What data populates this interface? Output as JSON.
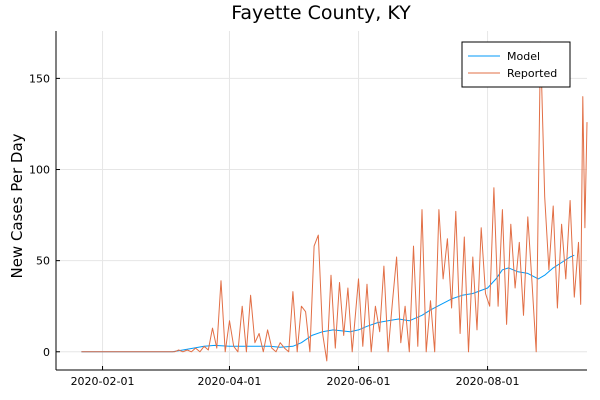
{
  "chart_data": {
    "type": "line",
    "title": "Fayette County, KY",
    "xlabel": "",
    "ylabel": "New Cases Per Day",
    "x_axis_type": "date",
    "xlim": [
      "2020-01-10",
      "2020-09-17"
    ],
    "ylim": [
      -10,
      176
    ],
    "xticks": [
      "2020-02-01",
      "2020-04-01",
      "2020-06-01",
      "2020-08-01"
    ],
    "yticks": [
      0,
      50,
      100,
      150
    ],
    "grid": true,
    "legend_position": "top-right",
    "series": [
      {
        "name": "Model",
        "color": "#009af9",
        "points": [
          [
            "2020-01-22",
            0
          ],
          [
            "2020-03-05",
            0
          ],
          [
            "2020-03-10",
            1
          ],
          [
            "2020-03-15",
            2
          ],
          [
            "2020-03-20",
            3
          ],
          [
            "2020-03-25",
            3.5
          ],
          [
            "2020-04-01",
            3
          ],
          [
            "2020-04-10",
            3
          ],
          [
            "2020-04-20",
            3
          ],
          [
            "2020-04-25",
            2.5
          ],
          [
            "2020-05-01",
            3
          ],
          [
            "2020-05-05",
            5
          ],
          [
            "2020-05-10",
            9
          ],
          [
            "2020-05-15",
            11
          ],
          [
            "2020-05-20",
            12
          ],
          [
            "2020-05-28",
            11
          ],
          [
            "2020-06-01",
            12
          ],
          [
            "2020-06-05",
            14
          ],
          [
            "2020-06-10",
            16
          ],
          [
            "2020-06-15",
            17
          ],
          [
            "2020-06-20",
            18
          ],
          [
            "2020-06-25",
            17
          ],
          [
            "2020-07-01",
            20
          ],
          [
            "2020-07-05",
            23
          ],
          [
            "2020-07-10",
            26
          ],
          [
            "2020-07-15",
            29
          ],
          [
            "2020-07-20",
            31
          ],
          [
            "2020-07-25",
            32
          ],
          [
            "2020-08-01",
            35
          ],
          [
            "2020-08-05",
            40
          ],
          [
            "2020-08-08",
            45
          ],
          [
            "2020-08-11",
            46
          ],
          [
            "2020-08-15",
            44
          ],
          [
            "2020-08-20",
            43
          ],
          [
            "2020-08-25",
            40
          ],
          [
            "2020-08-28",
            42
          ],
          [
            "2020-09-01",
            46
          ],
          [
            "2020-09-05",
            49
          ],
          [
            "2020-09-09",
            52
          ],
          [
            "2020-09-11",
            53
          ]
        ]
      },
      {
        "name": "Reported",
        "color": "#e26f46",
        "points": [
          [
            "2020-01-22",
            0
          ],
          [
            "2020-03-06",
            0
          ],
          [
            "2020-03-08",
            1
          ],
          [
            "2020-03-10",
            0
          ],
          [
            "2020-03-12",
            1
          ],
          [
            "2020-03-14",
            0
          ],
          [
            "2020-03-16",
            2
          ],
          [
            "2020-03-18",
            0
          ],
          [
            "2020-03-20",
            3
          ],
          [
            "2020-03-22",
            1
          ],
          [
            "2020-03-24",
            13
          ],
          [
            "2020-03-26",
            2
          ],
          [
            "2020-03-28",
            39
          ],
          [
            "2020-03-30",
            0
          ],
          [
            "2020-04-01",
            17
          ],
          [
            "2020-04-03",
            3
          ],
          [
            "2020-04-05",
            0
          ],
          [
            "2020-04-07",
            25
          ],
          [
            "2020-04-09",
            0
          ],
          [
            "2020-04-11",
            31
          ],
          [
            "2020-04-13",
            5
          ],
          [
            "2020-04-15",
            10
          ],
          [
            "2020-04-17",
            0
          ],
          [
            "2020-04-19",
            12
          ],
          [
            "2020-04-21",
            2
          ],
          [
            "2020-04-23",
            0
          ],
          [
            "2020-04-25",
            5
          ],
          [
            "2020-04-27",
            2
          ],
          [
            "2020-04-29",
            0
          ],
          [
            "2020-05-01",
            33
          ],
          [
            "2020-05-03",
            0
          ],
          [
            "2020-05-05",
            25
          ],
          [
            "2020-05-07",
            22
          ],
          [
            "2020-05-09",
            0
          ],
          [
            "2020-05-11",
            58
          ],
          [
            "2020-05-13",
            64
          ],
          [
            "2020-05-15",
            10
          ],
          [
            "2020-05-17",
            -5
          ],
          [
            "2020-05-19",
            42
          ],
          [
            "2020-05-21",
            2
          ],
          [
            "2020-05-23",
            38
          ],
          [
            "2020-05-25",
            9
          ],
          [
            "2020-05-27",
            35
          ],
          [
            "2020-05-29",
            0
          ],
          [
            "2020-06-01",
            40
          ],
          [
            "2020-06-03",
            3
          ],
          [
            "2020-06-05",
            37
          ],
          [
            "2020-06-07",
            0
          ],
          [
            "2020-06-09",
            25
          ],
          [
            "2020-06-11",
            11
          ],
          [
            "2020-06-13",
            47
          ],
          [
            "2020-06-15",
            0
          ],
          [
            "2020-06-17",
            27
          ],
          [
            "2020-06-19",
            52
          ],
          [
            "2020-06-21",
            5
          ],
          [
            "2020-06-23",
            25
          ],
          [
            "2020-06-25",
            0
          ],
          [
            "2020-06-27",
            58
          ],
          [
            "2020-06-29",
            3
          ],
          [
            "2020-07-01",
            78
          ],
          [
            "2020-07-03",
            0
          ],
          [
            "2020-07-05",
            28
          ],
          [
            "2020-07-07",
            0
          ],
          [
            "2020-07-09",
            78
          ],
          [
            "2020-07-11",
            40
          ],
          [
            "2020-07-13",
            62
          ],
          [
            "2020-07-15",
            24
          ],
          [
            "2020-07-17",
            77
          ],
          [
            "2020-07-19",
            10
          ],
          [
            "2020-07-21",
            63
          ],
          [
            "2020-07-23",
            0
          ],
          [
            "2020-07-25",
            52
          ],
          [
            "2020-07-27",
            12
          ],
          [
            "2020-07-29",
            68
          ],
          [
            "2020-07-31",
            32
          ],
          [
            "2020-08-02",
            25
          ],
          [
            "2020-08-04",
            90
          ],
          [
            "2020-08-06",
            25
          ],
          [
            "2020-08-08",
            78
          ],
          [
            "2020-08-10",
            15
          ],
          [
            "2020-08-12",
            70
          ],
          [
            "2020-08-14",
            35
          ],
          [
            "2020-08-16",
            60
          ],
          [
            "2020-08-18",
            20
          ],
          [
            "2020-08-20",
            74
          ],
          [
            "2020-08-22",
            38
          ],
          [
            "2020-08-24",
            0
          ],
          [
            "2020-08-26",
            170
          ],
          [
            "2020-08-28",
            85
          ],
          [
            "2020-08-30",
            45
          ],
          [
            "2020-09-01",
            80
          ],
          [
            "2020-09-03",
            24
          ],
          [
            "2020-09-05",
            70
          ],
          [
            "2020-09-07",
            40
          ],
          [
            "2020-09-09",
            83
          ],
          [
            "2020-09-11",
            30
          ],
          [
            "2020-09-13",
            60
          ],
          [
            "2020-09-14",
            26
          ],
          [
            "2020-09-15",
            140
          ],
          [
            "2020-09-16",
            68
          ],
          [
            "2020-09-17",
            126
          ]
        ]
      }
    ]
  }
}
